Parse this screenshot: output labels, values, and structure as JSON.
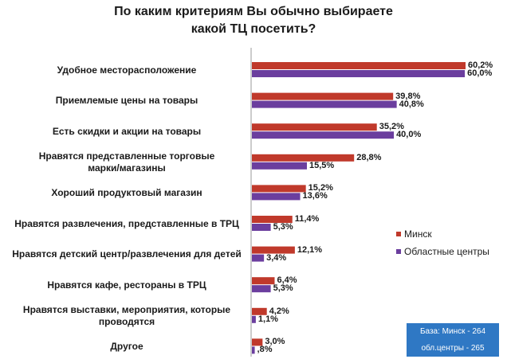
{
  "chart_data": {
    "type": "bar",
    "orientation": "horizontal",
    "title": [
      "По каким критериям Вы обычно выбираете",
      "какой ТЦ посетить?"
    ],
    "categories": [
      [
        "Удобное месторасположение"
      ],
      [
        "Приемлемые цены на товары"
      ],
      [
        "Есть скидки и акции на товары"
      ],
      [
        "Нравятся представленные торговые",
        "марки/магазины"
      ],
      [
        "Хороший продуктовый магазин"
      ],
      [
        "Нравятся развлечения, представленные в ТРЦ"
      ],
      [
        "Нравятся детский центр/развлечения для детей"
      ],
      [
        "Нравятся кафе, рестораны в ТРЦ"
      ],
      [
        "Нравятся выставки, мероприятия, которые",
        "проводятся"
      ],
      [
        "Другое"
      ]
    ],
    "series": [
      {
        "name": "Минск",
        "color": "#c0392b",
        "values": [
          60.2,
          39.8,
          35.2,
          28.8,
          15.2,
          11.4,
          12.1,
          6.4,
          4.2,
          3.0
        ],
        "labels": [
          "60,2%",
          "39,8%",
          "35,2%",
          "28,8%",
          "15,2%",
          "11,4%",
          "12,1%",
          "6,4%",
          "4,2%",
          "3,0%"
        ]
      },
      {
        "name": "Областные центры",
        "color": "#6b3e9e",
        "values": [
          60.0,
          40.8,
          40.0,
          15.5,
          13.6,
          5.3,
          3.4,
          5.3,
          1.1,
          0.8
        ],
        "labels": [
          "60,0%",
          "40,8%",
          "40,0%",
          "15,5%",
          "13,6%",
          "5,3%",
          "3,4%",
          "5,3%",
          "1,1%",
          ",8%"
        ]
      }
    ],
    "xlim": [
      0,
      60.2
    ],
    "grid": false,
    "legend_position": "right"
  },
  "base_note": [
    "База: Минск - 264",
    "обл.центры - 265"
  ]
}
